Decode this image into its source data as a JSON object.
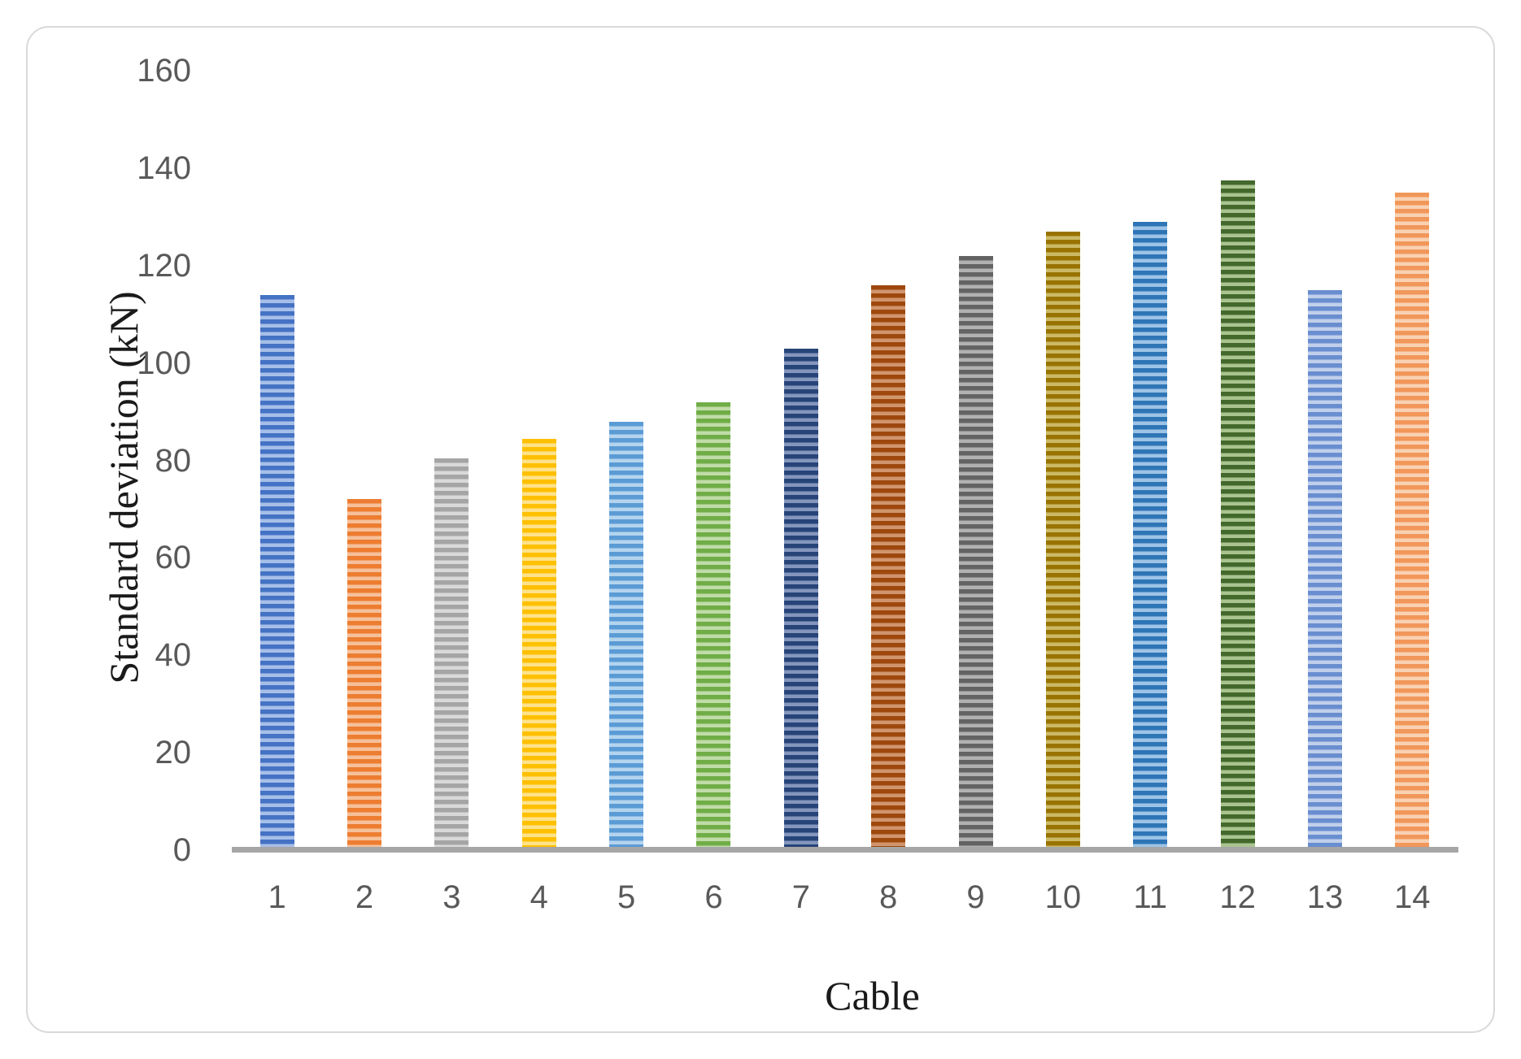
{
  "figure": {
    "background_color": "#ffffff",
    "card_border_color": "#d9d9d9",
    "axis_line_color": "#a6a6a6",
    "tick_label_color": "#595959",
    "axis_title_color": "#1a1a1a"
  },
  "chart_data": {
    "type": "bar",
    "title": "",
    "xlabel": "Cable",
    "ylabel": "Standard deviation (kN)",
    "categories": [
      "1",
      "2",
      "3",
      "4",
      "5",
      "6",
      "7",
      "8",
      "9",
      "10",
      "11",
      "12",
      "13",
      "14"
    ],
    "values": [
      114,
      72,
      80.5,
      84.5,
      88,
      92,
      103,
      116,
      122,
      127,
      129,
      137.5,
      115,
      135
    ],
    "ylim": [
      0,
      160
    ],
    "yticks": [
      0,
      20,
      40,
      60,
      80,
      100,
      120,
      140,
      160
    ],
    "grid": false,
    "legend_position": "none",
    "bar_fill_style": "horizontal-stripes",
    "bar_colors_main": [
      "#4472C4",
      "#ED7D31",
      "#A5A5A5",
      "#FFC000",
      "#5B9BD5",
      "#70AD47",
      "#264478",
      "#9E480E",
      "#636363",
      "#997300",
      "#2E75B6",
      "#43682B",
      "#698ED0",
      "#F1975A"
    ],
    "bar_colors_light": [
      "#a7bfe8",
      "#f6c09a",
      "#d9d9d9",
      "#ffe28a",
      "#b4d4ee",
      "#c0dca8",
      "#8496bd",
      "#d0956d",
      "#b1b1b1",
      "#ccb966",
      "#9dc3e6",
      "#a9c48f",
      "#c0cfeb",
      "#f9d1b3"
    ]
  }
}
